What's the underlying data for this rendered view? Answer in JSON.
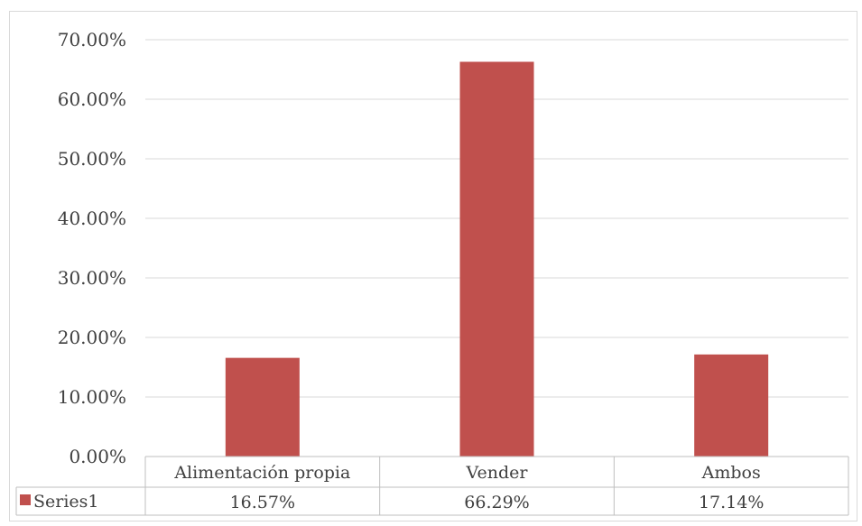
{
  "chart_data": {
    "type": "bar",
    "categories": [
      "Alimentación propia",
      "Vender",
      "Ambos"
    ],
    "series": [
      {
        "name": "Series1",
        "values": [
          0.1657,
          0.6629,
          0.1714
        ],
        "value_labels": [
          "16.57%",
          "66.29%",
          "17.14%"
        ],
        "color": "#c0504d"
      }
    ],
    "ylim": [
      0,
      0.7
    ],
    "yticks": [
      0,
      0.1,
      0.2,
      0.3,
      0.4,
      0.5,
      0.6,
      0.7
    ],
    "ytick_labels": [
      "0.00%",
      "10.00%",
      "20.00%",
      "30.00%",
      "40.00%",
      "50.00%",
      "60.00%",
      "70.00%"
    ],
    "grid": true,
    "legend": "data-table",
    "data_table": true
  }
}
